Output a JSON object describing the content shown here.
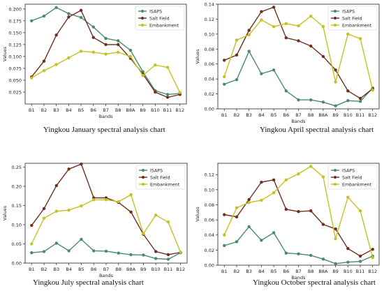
{
  "colors": {
    "isaps": "#4a8a6e",
    "salt_field": "#6e2f1f",
    "embankment": "#c3c21f",
    "axis": "#222222"
  },
  "chart_data": [
    {
      "type": "line",
      "caption": "Yingkou January spectral analysis chart",
      "xlabel": "Bands",
      "ylabel": "Values",
      "categories": [
        "B1",
        "B2",
        "B3",
        "B4",
        "B5",
        "B6",
        "B7",
        "B8",
        "B8A",
        "B9",
        "B10",
        "B11",
        "B12"
      ],
      "ylim": [
        0.0,
        0.21
      ],
      "yticks": [
        "0.025",
        "0.050",
        "0.075",
        "0.100",
        "0.125",
        "0.150",
        "0.175",
        "0.200"
      ],
      "legend": "top-right",
      "series": [
        {
          "name": "ISAPS",
          "color_key": "isaps",
          "values": [
            0.175,
            0.185,
            0.203,
            0.19,
            0.182,
            0.162,
            0.138,
            0.133,
            0.113,
            0.068,
            0.028,
            0.02,
            0.022
          ]
        },
        {
          "name": "Salt Field",
          "color_key": "salt_field",
          "values": [
            0.057,
            0.09,
            0.145,
            0.183,
            0.197,
            0.14,
            0.125,
            0.125,
            0.096,
            0.063,
            0.025,
            0.014,
            0.02
          ]
        },
        {
          "name": "Embankment",
          "color_key": "embankment",
          "values": [
            0.055,
            0.07,
            0.083,
            0.097,
            0.111,
            0.109,
            0.105,
            0.109,
            0.1,
            0.06,
            0.082,
            0.077,
            0.024
          ]
        }
      ]
    },
    {
      "type": "line",
      "caption": "Yingkou April spectral analysis chart",
      "xlabel": "Bands",
      "ylabel": "Values",
      "categories": [
        "B1",
        "B2",
        "B3",
        "B4",
        "B5",
        "B6",
        "B7",
        "B8",
        "B8A",
        "B9",
        "B10",
        "B11",
        "B12"
      ],
      "ylim": [
        0.0,
        0.14
      ],
      "yticks": [
        "0.00",
        "0.02",
        "0.04",
        "0.06",
        "0.08",
        "0.10",
        "0.12",
        "0.14"
      ],
      "legend": "top-right",
      "series": [
        {
          "name": "ISAPS",
          "color_key": "isaps",
          "values": [
            0.033,
            0.039,
            0.077,
            0.047,
            0.052,
            0.024,
            0.012,
            0.012,
            0.009,
            0.004,
            0.011,
            0.01,
            0.028
          ]
        },
        {
          "name": "Salt Field",
          "color_key": "salt_field",
          "values": [
            0.065,
            0.072,
            0.105,
            0.13,
            0.136,
            0.095,
            0.091,
            0.084,
            0.07,
            0.052,
            0.024,
            0.014,
            0.027
          ]
        },
        {
          "name": "Embankment",
          "color_key": "embankment",
          "values": [
            0.043,
            0.092,
            0.099,
            0.119,
            0.11,
            0.114,
            0.111,
            0.124,
            0.11,
            0.036,
            0.1,
            0.094,
            0.025
          ]
        }
      ]
    },
    {
      "type": "line",
      "caption": "Yingkou July spectral analysis chart",
      "xlabel": "Bands",
      "ylabel": "Values",
      "categories": [
        "B1",
        "B2",
        "B3",
        "B4",
        "B5",
        "B6",
        "B7",
        "B8",
        "B8A",
        "B9",
        "B10",
        "B11",
        "B12"
      ],
      "ylim": [
        0.0,
        0.26
      ],
      "yticks": [
        "0.00",
        "0.05",
        "0.10",
        "0.15",
        "0.20",
        "0.25"
      ],
      "legend": "top-right",
      "series": [
        {
          "name": "ISAPS",
          "color_key": "isaps",
          "values": [
            0.027,
            0.03,
            0.052,
            0.032,
            0.062,
            0.032,
            0.031,
            0.026,
            0.022,
            0.021,
            0.012,
            0.01,
            0.027
          ]
        },
        {
          "name": "Salt Field",
          "color_key": "salt_field",
          "values": [
            0.098,
            0.142,
            0.202,
            0.245,
            0.258,
            0.17,
            0.17,
            0.158,
            0.133,
            0.075,
            0.03,
            0.022,
            0.028
          ]
        },
        {
          "name": "Embankment",
          "color_key": "embankment",
          "values": [
            0.05,
            0.117,
            0.135,
            0.138,
            0.149,
            0.165,
            0.165,
            0.16,
            0.178,
            0.077,
            0.125,
            0.107,
            0.028
          ]
        }
      ]
    },
    {
      "type": "line",
      "caption": "Yingkou October spectral analysis chart",
      "xlabel": "Bands",
      "ylabel": "Values",
      "categories": [
        "B1",
        "B2",
        "B3",
        "B4",
        "B5",
        "B6",
        "B7",
        "B8",
        "B8A",
        "B9",
        "B10",
        "B11",
        "B12"
      ],
      "ylim": [
        0.0,
        0.135
      ],
      "yticks": [
        "0.00",
        "0.02",
        "0.04",
        "0.06",
        "0.08",
        "0.10",
        "0.12"
      ],
      "legend": "top-right",
      "series": [
        {
          "name": "ISAPS",
          "color_key": "isaps",
          "values": [
            0.026,
            0.031,
            0.051,
            0.033,
            0.043,
            0.016,
            0.015,
            0.013,
            0.008,
            0.002,
            0.004,
            0.005,
            0.012
          ]
        },
        {
          "name": "Salt Field",
          "color_key": "salt_field",
          "values": [
            0.067,
            0.064,
            0.087,
            0.11,
            0.113,
            0.074,
            0.071,
            0.072,
            0.054,
            0.048,
            0.022,
            0.012,
            0.021
          ]
        },
        {
          "name": "Embankment",
          "color_key": "embankment",
          "values": [
            0.04,
            0.076,
            0.083,
            0.086,
            0.096,
            0.113,
            0.121,
            0.131,
            0.117,
            0.035,
            0.09,
            0.072,
            0.01
          ]
        }
      ]
    }
  ]
}
